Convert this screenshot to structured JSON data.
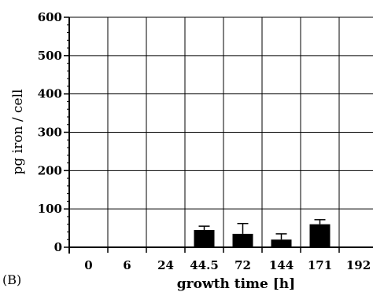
{
  "chart_data": {
    "type": "bar",
    "panel_label": "(B)",
    "xlabel": "growth time  [h]",
    "ylabel": "pg iron / cell",
    "ylim": [
      0,
      600
    ],
    "yticks": [
      0,
      100,
      200,
      300,
      400,
      500,
      600
    ],
    "categories": [
      "0",
      "6",
      "24",
      "44.5",
      "72",
      "144",
      "171",
      "192"
    ],
    "series": [
      {
        "values": [
          0,
          0,
          0,
          45,
          35,
          20,
          60,
          0
        ],
        "error_upper": [
          0,
          0,
          0,
          55,
          62,
          35,
          72,
          0
        ]
      }
    ],
    "grid": true,
    "bar_color": "#000000"
  }
}
